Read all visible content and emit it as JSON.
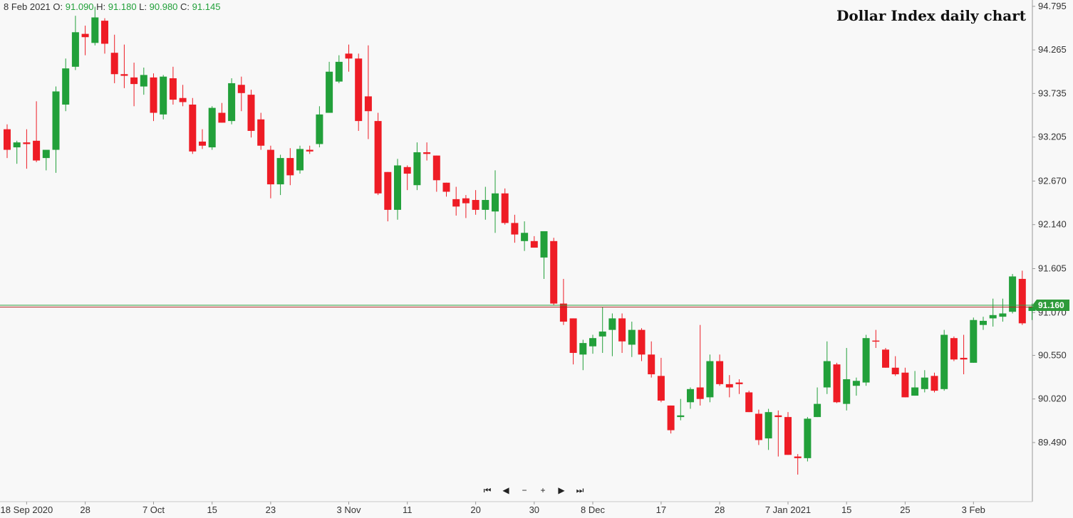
{
  "header": {
    "date": "8 Feb 2021",
    "o_label": "O:",
    "o_value": "91.090",
    "h_label": "H:",
    "h_value": "91.180",
    "l_label": "L:",
    "l_value": "90.980",
    "c_label": "C:",
    "c_value": "91.145"
  },
  "toolbar": {
    "first_label": "⏮",
    "prev_label": "◀",
    "zoom_out_label": "−",
    "zoom_in_label": "+",
    "next_label": "▶",
    "last_label": "⏭"
  },
  "colors": {
    "up": "#22a03a",
    "down": "#ee1c25",
    "price_line": "#b22222",
    "last_line": "#2e9b3a",
    "tag": "#2e9b3a"
  },
  "chart_data": {
    "type": "candlestick",
    "title": "Dollar Index daily chart",
    "ylim": [
      89.1,
      94.82
    ],
    "y_ticks": [
      "94.795",
      "94.265",
      "93.735",
      "93.205",
      "92.670",
      "92.140",
      "91.605",
      "91.070",
      "90.550",
      "90.020",
      "89.490"
    ],
    "x_tick_labels": [
      {
        "label": "18 Sep 2020",
        "index": 2
      },
      {
        "label": "28",
        "index": 8
      },
      {
        "label": "7 Oct",
        "index": 15
      },
      {
        "label": "15",
        "index": 21
      },
      {
        "label": "23",
        "index": 27
      },
      {
        "label": "3 Nov",
        "index": 35
      },
      {
        "label": "11",
        "index": 41
      },
      {
        "label": "20",
        "index": 48
      },
      {
        "label": "30",
        "index": 54
      },
      {
        "label": "8 Dec",
        "index": 60
      },
      {
        "label": "17",
        "index": 67
      },
      {
        "label": "28",
        "index": 73
      },
      {
        "label": "7 Jan 2021",
        "index": 80
      },
      {
        "label": "15",
        "index": 86
      },
      {
        "label": "25",
        "index": 92
      },
      {
        "label": "3 Feb",
        "index": 99
      }
    ],
    "last_price": "91.160",
    "last_price_value": 91.16,
    "reference_price": 91.145,
    "candles": [
      [
        93.3,
        93.36,
        92.95,
        93.05
      ],
      [
        93.08,
        93.16,
        92.88,
        93.14
      ],
      [
        93.14,
        93.3,
        92.82,
        93.12
      ],
      [
        93.16,
        93.64,
        92.9,
        92.92
      ],
      [
        92.95,
        93.04,
        92.8,
        93.05
      ],
      [
        93.05,
        93.82,
        92.77,
        93.76
      ],
      [
        93.6,
        94.16,
        93.52,
        94.04
      ],
      [
        94.06,
        94.68,
        94.02,
        94.48
      ],
      [
        94.46,
        94.56,
        94.2,
        94.42
      ],
      [
        94.35,
        94.79,
        94.32,
        94.66
      ],
      [
        94.62,
        94.65,
        94.22,
        94.34
      ],
      [
        94.23,
        94.45,
        93.86,
        93.97
      ],
      [
        93.97,
        94.33,
        93.8,
        93.95
      ],
      [
        93.93,
        94.11,
        93.58,
        93.85
      ],
      [
        93.82,
        94.05,
        93.72,
        93.96
      ],
      [
        93.93,
        93.98,
        93.4,
        93.5
      ],
      [
        93.48,
        93.96,
        93.42,
        93.94
      ],
      [
        93.92,
        94.06,
        93.6,
        93.66
      ],
      [
        93.68,
        93.84,
        93.58,
        93.63
      ],
      [
        93.6,
        93.68,
        93.0,
        93.03
      ],
      [
        93.15,
        93.3,
        93.06,
        93.1
      ],
      [
        93.08,
        93.58,
        93.05,
        93.56
      ],
      [
        93.5,
        93.62,
        93.38,
        93.38
      ],
      [
        93.4,
        93.92,
        93.36,
        93.86
      ],
      [
        93.84,
        93.94,
        93.52,
        93.74
      ],
      [
        93.72,
        93.78,
        93.2,
        93.28
      ],
      [
        93.42,
        93.5,
        93.05,
        93.1
      ],
      [
        93.05,
        93.1,
        92.46,
        92.63
      ],
      [
        92.63,
        92.99,
        92.5,
        92.95
      ],
      [
        92.95,
        93.07,
        92.62,
        92.74
      ],
      [
        92.8,
        93.1,
        92.76,
        93.06
      ],
      [
        93.05,
        93.1,
        93.0,
        93.03
      ],
      [
        93.12,
        93.58,
        93.08,
        93.48
      ],
      [
        93.5,
        94.12,
        93.5,
        94.0
      ],
      [
        93.88,
        94.2,
        93.86,
        94.12
      ],
      [
        94.22,
        94.33,
        94.0,
        94.16
      ],
      [
        94.16,
        94.22,
        93.28,
        93.4
      ],
      [
        93.7,
        94.32,
        93.18,
        93.52
      ],
      [
        93.4,
        93.5,
        92.5,
        92.52
      ],
      [
        92.78,
        92.78,
        92.18,
        92.32
      ],
      [
        92.32,
        92.94,
        92.2,
        92.86
      ],
      [
        92.84,
        92.86,
        92.56,
        92.76
      ],
      [
        92.62,
        93.14,
        92.56,
        93.02
      ],
      [
        93.02,
        93.14,
        92.92,
        93.0
      ],
      [
        92.98,
        92.98,
        92.54,
        92.68
      ],
      [
        92.65,
        92.65,
        92.48,
        92.54
      ],
      [
        92.45,
        92.6,
        92.25,
        92.36
      ],
      [
        92.46,
        92.5,
        92.22,
        92.4
      ],
      [
        92.44,
        92.56,
        92.26,
        92.32
      ],
      [
        92.32,
        92.6,
        92.2,
        92.44
      ],
      [
        92.3,
        92.8,
        92.04,
        92.52
      ],
      [
        92.52,
        92.58,
        92.14,
        92.16
      ],
      [
        92.16,
        92.26,
        91.92,
        92.02
      ],
      [
        91.94,
        92.18,
        91.82,
        92.04
      ],
      [
        91.94,
        92.0,
        91.86,
        91.86
      ],
      [
        91.74,
        92.06,
        91.48,
        92.06
      ],
      [
        91.94,
        91.98,
        91.16,
        91.18
      ],
      [
        91.18,
        91.48,
        90.92,
        90.96
      ],
      [
        91.0,
        91.0,
        90.44,
        90.58
      ],
      [
        90.56,
        90.74,
        90.37,
        90.7
      ],
      [
        90.66,
        90.8,
        90.57,
        90.76
      ],
      [
        90.78,
        91.14,
        90.58,
        90.84
      ],
      [
        90.86,
        91.06,
        90.54,
        91.0
      ],
      [
        91.0,
        91.06,
        90.58,
        90.72
      ],
      [
        90.68,
        90.96,
        90.53,
        90.86
      ],
      [
        90.86,
        90.88,
        90.48,
        90.56
      ],
      [
        90.56,
        90.72,
        90.28,
        90.32
      ],
      [
        90.3,
        90.52,
        89.98,
        90.0
      ],
      [
        89.94,
        89.94,
        89.6,
        89.64
      ],
      [
        89.8,
        90.02,
        89.76,
        89.82
      ],
      [
        89.98,
        90.16,
        89.9,
        90.14
      ],
      [
        90.16,
        90.92,
        89.94,
        90.02
      ],
      [
        90.04,
        90.56,
        89.98,
        90.48
      ],
      [
        90.48,
        90.56,
        90.18,
        90.2
      ],
      [
        90.2,
        90.31,
        90.04,
        90.16
      ],
      [
        90.22,
        90.26,
        90.08,
        90.2
      ],
      [
        90.1,
        90.12,
        89.86,
        89.86
      ],
      [
        89.84,
        89.89,
        89.46,
        89.52
      ],
      [
        89.54,
        89.9,
        89.4,
        89.86
      ],
      [
        89.82,
        89.88,
        89.32,
        89.8
      ],
      [
        89.8,
        89.86,
        89.34,
        89.34
      ],
      [
        89.32,
        89.35,
        89.1,
        89.3
      ],
      [
        89.3,
        89.8,
        89.26,
        89.78
      ],
      [
        89.8,
        90.16,
        89.8,
        89.96
      ],
      [
        90.16,
        90.72,
        90.08,
        90.48
      ],
      [
        90.44,
        90.46,
        89.97,
        89.98
      ],
      [
        89.96,
        90.64,
        89.88,
        90.26
      ],
      [
        90.18,
        90.28,
        90.06,
        90.24
      ],
      [
        90.22,
        90.8,
        90.18,
        90.76
      ],
      [
        90.73,
        90.86,
        90.64,
        90.72
      ],
      [
        90.62,
        90.64,
        90.4,
        90.4
      ],
      [
        90.4,
        90.54,
        90.3,
        90.32
      ],
      [
        90.34,
        90.4,
        90.04,
        90.04
      ],
      [
        90.06,
        90.36,
        90.06,
        90.16
      ],
      [
        90.14,
        90.37,
        90.1,
        90.28
      ],
      [
        90.3,
        90.34,
        90.1,
        90.12
      ],
      [
        90.14,
        90.86,
        90.12,
        90.8
      ],
      [
        90.76,
        90.78,
        90.48,
        90.5
      ],
      [
        90.52,
        90.8,
        90.32,
        90.5
      ],
      [
        90.46,
        91.01,
        90.46,
        90.98
      ],
      [
        90.92,
        91.02,
        90.86,
        90.97
      ],
      [
        91.0,
        91.24,
        90.9,
        91.04
      ],
      [
        91.02,
        91.24,
        90.96,
        91.06
      ],
      [
        91.08,
        91.54,
        91.06,
        91.51
      ],
      [
        91.48,
        91.58,
        90.92,
        90.94
      ],
      [
        91.09,
        91.18,
        90.98,
        91.145
      ]
    ]
  }
}
